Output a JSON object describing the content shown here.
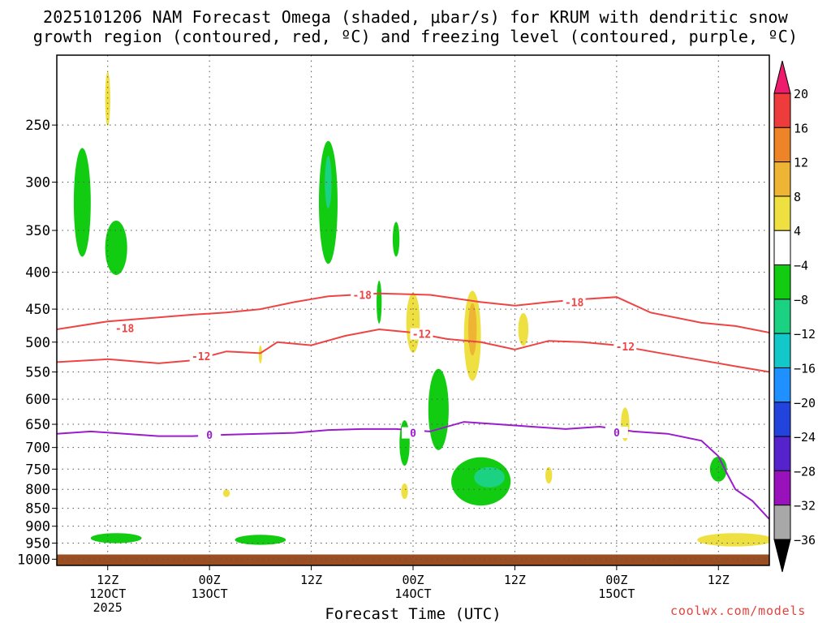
{
  "title_line1": "2025101206 NAM Forecast Omega (shaded, μbar/s) for KRUM with dendritic snow",
  "title_line2": "growth region (contoured, red, ºC) and freezing level (contoured, purple, ºC)",
  "credit": "coolwx.com/models",
  "chart_data": {
    "type": "contour",
    "xlabel": "Forecast Time (UTC)",
    "x_ticks": [
      {
        "hour": 6,
        "line1": "12Z",
        "line2": "12OCT",
        "line3": "2025"
      },
      {
        "hour": 18,
        "line1": "00Z",
        "line2": "13OCT",
        "line3": ""
      },
      {
        "hour": 30,
        "line1": "12Z",
        "line2": "",
        "line3": ""
      },
      {
        "hour": 42,
        "line1": "00Z",
        "line2": "14OCT",
        "line3": ""
      },
      {
        "hour": 54,
        "line1": "12Z",
        "line2": "",
        "line3": ""
      },
      {
        "hour": 66,
        "line1": "00Z",
        "line2": "15OCT",
        "line3": ""
      },
      {
        "hour": 78,
        "line1": "12Z",
        "line2": "",
        "line3": ""
      }
    ],
    "x_range_hours": [
      0,
      84
    ],
    "ylabel": "",
    "y_ticks": [
      250,
      300,
      350,
      400,
      450,
      500,
      550,
      600,
      650,
      700,
      750,
      800,
      850,
      900,
      950,
      1000
    ],
    "y_range_hpa": [
      200,
      1020
    ],
    "y_scale": "log-pressure",
    "grid": true,
    "colorbar": {
      "levels": [
        "20",
        "16",
        "12",
        "8",
        "4",
        "−4",
        "−8",
        "−12",
        "−16",
        "−20",
        "−24",
        "−28",
        "−32",
        "−36"
      ],
      "colors": [
        "#ee1c6c",
        "#ee3c3c",
        "#ee8428",
        "#eeb434",
        "#eee040",
        "#ffffff",
        "#11cc11",
        "#1ad282",
        "#12c8c8",
        "#1e90ff",
        "#2244dd",
        "#5522cc",
        "#9911bb",
        "#a8a8a8",
        "#000000"
      ]
    },
    "isotherms": [
      {
        "label": "-18",
        "color": "#ee4444",
        "points": [
          [
            0,
            480
          ],
          [
            6,
            468
          ],
          [
            12,
            462
          ],
          [
            16,
            458
          ],
          [
            20,
            455
          ],
          [
            24,
            450
          ],
          [
            28,
            440
          ],
          [
            32,
            432
          ],
          [
            38,
            428
          ],
          [
            44,
            430
          ],
          [
            50,
            440
          ],
          [
            54,
            445
          ],
          [
            58,
            440
          ],
          [
            62,
            436
          ],
          [
            66,
            433
          ],
          [
            70,
            455
          ],
          [
            76,
            470
          ],
          [
            80,
            475
          ],
          [
            84,
            485
          ]
        ],
        "label_at": [
          [
            8,
            478
          ],
          [
            36,
            430
          ],
          [
            61,
            440
          ]
        ]
      },
      {
        "label": "-12",
        "color": "#ee4444",
        "points": [
          [
            0,
            533
          ],
          [
            6,
            528
          ],
          [
            12,
            535
          ],
          [
            16,
            530
          ],
          [
            20,
            515
          ],
          [
            24,
            518
          ],
          [
            26,
            500
          ],
          [
            30,
            505
          ],
          [
            34,
            490
          ],
          [
            38,
            480
          ],
          [
            42,
            485
          ],
          [
            46,
            495
          ],
          [
            50,
            500
          ],
          [
            54,
            512
          ],
          [
            58,
            498
          ],
          [
            62,
            500
          ],
          [
            66,
            505
          ],
          [
            70,
            515
          ],
          [
            76,
            530
          ],
          [
            80,
            540
          ],
          [
            84,
            550
          ]
        ],
        "label_at": [
          [
            17,
            523
          ],
          [
            43,
            487
          ],
          [
            67,
            507
          ]
        ]
      },
      {
        "label": "0",
        "color": "#9a1ccc",
        "points": [
          [
            0,
            670
          ],
          [
            4,
            665
          ],
          [
            8,
            670
          ],
          [
            12,
            675
          ],
          [
            16,
            675
          ],
          [
            20,
            672
          ],
          [
            24,
            670
          ],
          [
            28,
            668
          ],
          [
            32,
            662
          ],
          [
            36,
            660
          ],
          [
            40,
            660
          ],
          [
            44,
            665
          ],
          [
            48,
            645
          ],
          [
            52,
            650
          ],
          [
            56,
            655
          ],
          [
            60,
            660
          ],
          [
            64,
            655
          ],
          [
            68,
            665
          ],
          [
            72,
            670
          ],
          [
            76,
            685
          ],
          [
            78,
            720
          ],
          [
            79,
            760
          ],
          [
            80,
            800
          ],
          [
            82,
            830
          ],
          [
            84,
            880
          ]
        ],
        "label_at": [
          [
            18,
            672
          ],
          [
            42,
            668
          ],
          [
            66,
            667
          ]
        ]
      }
    ],
    "omega_regions": [
      {
        "level": "-8",
        "center": [
          3,
          320
        ],
        "rx_hours": 1.0,
        "ry": 55
      },
      {
        "level": "-8",
        "center": [
          7,
          370
        ],
        "rx_hours": 1.3,
        "ry": 32
      },
      {
        "level": "-8",
        "center": [
          32,
          320
        ],
        "rx_hours": 1.1,
        "ry": 62
      },
      {
        "level": "-12",
        "center": [
          32,
          300
        ],
        "rx_hours": 0.4,
        "ry": 25
      },
      {
        "level": "-8",
        "center": [
          40,
          360
        ],
        "rx_hours": 0.4,
        "ry": 20
      },
      {
        "level": "-8",
        "center": [
          38,
          440
        ],
        "rx_hours": 0.3,
        "ry": 30
      },
      {
        "level": "-8",
        "center": [
          45,
          620
        ],
        "rx_hours": 1.2,
        "ry": 80
      },
      {
        "level": "-8",
        "center": [
          50,
          780
        ],
        "rx_hours": 3.5,
        "ry": 60
      },
      {
        "level": "-12",
        "center": [
          51,
          770
        ],
        "rx_hours": 1.8,
        "ry": 25
      },
      {
        "level": "-8",
        "center": [
          41,
          690
        ],
        "rx_hours": 0.6,
        "ry": 50
      },
      {
        "level": "-8",
        "center": [
          78,
          750
        ],
        "rx_hours": 1.0,
        "ry": 30
      },
      {
        "level": "-8",
        "center": [
          7,
          935
        ],
        "rx_hours": 3.0,
        "ry": 15
      },
      {
        "level": "-8",
        "center": [
          24,
          940
        ],
        "rx_hours": 3.0,
        "ry": 15
      }
    ],
    "omega_positive_regions": [
      {
        "level": "4",
        "center": [
          6,
          230
        ],
        "rx_hours": 0.3,
        "ry": 20
      },
      {
        "level": "4",
        "center": [
          42,
          470
        ],
        "rx_hours": 0.8,
        "ry": 45
      },
      {
        "level": "4",
        "center": [
          49,
          490
        ],
        "rx_hours": 1.0,
        "ry": 70
      },
      {
        "level": "8",
        "center": [
          49,
          480
        ],
        "rx_hours": 0.5,
        "ry": 40
      },
      {
        "level": "4",
        "center": [
          55,
          480
        ],
        "rx_hours": 0.6,
        "ry": 25
      },
      {
        "level": "4",
        "center": [
          67,
          650
        ],
        "rx_hours": 0.5,
        "ry": 35
      },
      {
        "level": "4",
        "center": [
          58,
          765
        ],
        "rx_hours": 0.4,
        "ry": 20
      },
      {
        "level": "4",
        "center": [
          41,
          805
        ],
        "rx_hours": 0.4,
        "ry": 20
      },
      {
        "level": "4",
        "center": [
          20,
          810
        ],
        "rx_hours": 0.4,
        "ry": 10
      },
      {
        "level": "4",
        "center": [
          24,
          520
        ],
        "rx_hours": 0.2,
        "ry": 15
      },
      {
        "level": "4",
        "center": [
          80,
          940
        ],
        "rx_hours": 4.5,
        "ry": 20
      }
    ],
    "surface_pressure_hpa": 985
  }
}
